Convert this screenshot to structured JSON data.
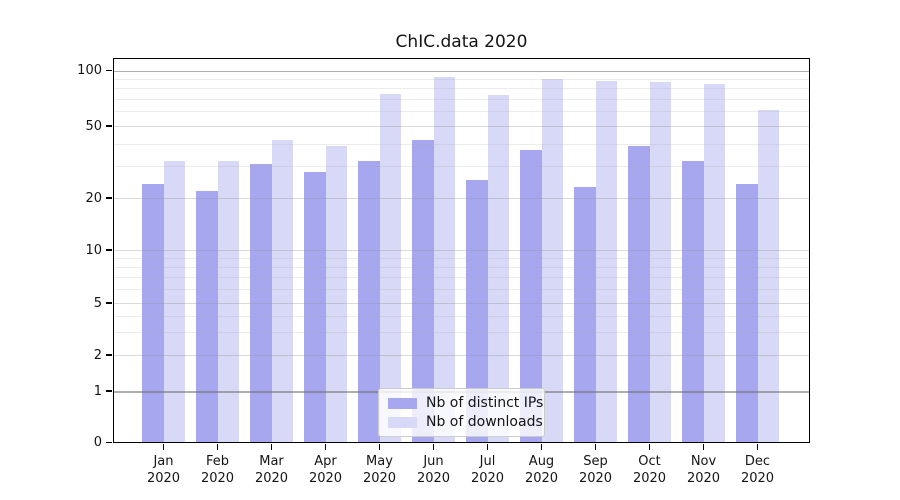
{
  "chart_data": {
    "type": "bar",
    "title": "ChIC.data 2020",
    "x": {
      "months": [
        "Jan",
        "Feb",
        "Mar",
        "Apr",
        "May",
        "Jun",
        "Jul",
        "Aug",
        "Sep",
        "Oct",
        "Nov",
        "Dec"
      ],
      "year": "2020"
    },
    "series": [
      {
        "name": "Nb of distinct IPs",
        "color": "#a7a7f0",
        "values": [
          24,
          22,
          31,
          28,
          32,
          42,
          25,
          37,
          23,
          39,
          32,
          24
        ]
      },
      {
        "name": "Nb of downloads",
        "color": "#d8d8f7",
        "values": [
          32,
          32,
          42,
          39,
          75,
          92,
          74,
          90,
          88,
          87,
          84,
          61
        ]
      }
    ],
    "y_axis": {
      "ticks": [
        0,
        1,
        2,
        5,
        10,
        20,
        50,
        100
      ],
      "scale": "log-like with linear segment below 1",
      "minor_gridlines": [
        3,
        4,
        6,
        7,
        8,
        9,
        30,
        40,
        60,
        70,
        80,
        90
      ],
      "emphasized_gridlines": [
        1,
        100
      ],
      "range": [
        0,
        100
      ]
    },
    "legend": {
      "position": "lower center inside plot"
    }
  }
}
